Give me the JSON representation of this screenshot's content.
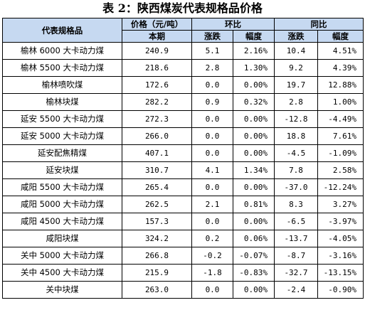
{
  "title": "表 2：陕西煤炭代表规格品价格",
  "headers": {
    "name": "代表规格品",
    "price": "价格（元/吨）",
    "period": "本期",
    "mom": "环比",
    "yoy": "同比",
    "change": "涨跌",
    "range": "幅度"
  },
  "rows": [
    {
      "name": "榆林 6000 大卡动力煤",
      "price": "240.9",
      "mom_change": "5.1",
      "mom_pct": "2.16%",
      "yoy_change": "10.4",
      "yoy_pct": "4.51%"
    },
    {
      "name": "榆林 5500 大卡动力煤",
      "price": "218.6",
      "mom_change": "2.8",
      "mom_pct": "1.30%",
      "yoy_change": "9.2",
      "yoy_pct": "4.39%"
    },
    {
      "name": "榆林喷吹煤",
      "price": "172.6",
      "mom_change": "0.0",
      "mom_pct": "0.00%",
      "yoy_change": "19.7",
      "yoy_pct": "12.88%"
    },
    {
      "name": "榆林块煤",
      "price": "282.2",
      "mom_change": "0.9",
      "mom_pct": "0.32%",
      "yoy_change": "2.8",
      "yoy_pct": "1.00%"
    },
    {
      "name": "延安 5500 大卡动力煤",
      "price": "272.3",
      "mom_change": "0.0",
      "mom_pct": "0.00%",
      "yoy_change": "-12.8",
      "yoy_pct": "-4.49%"
    },
    {
      "name": "延安 5000 大卡动力煤",
      "price": "266.0",
      "mom_change": "0.0",
      "mom_pct": "0.00%",
      "yoy_change": "18.8",
      "yoy_pct": "7.61%"
    },
    {
      "name": "延安配焦精煤",
      "price": "407.1",
      "mom_change": "0.0",
      "mom_pct": "0.00%",
      "yoy_change": "-4.5",
      "yoy_pct": "-1.09%"
    },
    {
      "name": "延安块煤",
      "price": "310.7",
      "mom_change": "4.1",
      "mom_pct": "1.34%",
      "yoy_change": "7.8",
      "yoy_pct": "2.58%"
    },
    {
      "name": "咸阳 5500 大卡动力煤",
      "price": "265.4",
      "mom_change": "0.0",
      "mom_pct": "0.00%",
      "yoy_change": "-37.0",
      "yoy_pct": "-12.24%"
    },
    {
      "name": "咸阳 5000 大卡动力煤",
      "price": "262.5",
      "mom_change": "2.1",
      "mom_pct": "0.81%",
      "yoy_change": "8.3",
      "yoy_pct": "3.27%"
    },
    {
      "name": "咸阳 4500 大卡动力煤",
      "price": "157.3",
      "mom_change": "0.0",
      "mom_pct": "0.00%",
      "yoy_change": "-6.5",
      "yoy_pct": "-3.97%"
    },
    {
      "name": "咸阳块煤",
      "price": "324.2",
      "mom_change": "0.2",
      "mom_pct": "0.06%",
      "yoy_change": "-13.7",
      "yoy_pct": "-4.05%"
    },
    {
      "name": "关中 5000 大卡动力煤",
      "price": "266.8",
      "mom_change": "-0.2",
      "mom_pct": "-0.07%",
      "yoy_change": "-8.7",
      "yoy_pct": "-3.16%"
    },
    {
      "name": "关中 4500 大卡动力煤",
      "price": "215.9",
      "mom_change": "-1.8",
      "mom_pct": "-0.83%",
      "yoy_change": "-32.7",
      "yoy_pct": "-13.15%"
    },
    {
      "name": "关中块煤",
      "price": "263.0",
      "mom_change": "0.0",
      "mom_pct": "0.00%",
      "yoy_change": "-2.4",
      "yoy_pct": "-0.90%"
    }
  ]
}
